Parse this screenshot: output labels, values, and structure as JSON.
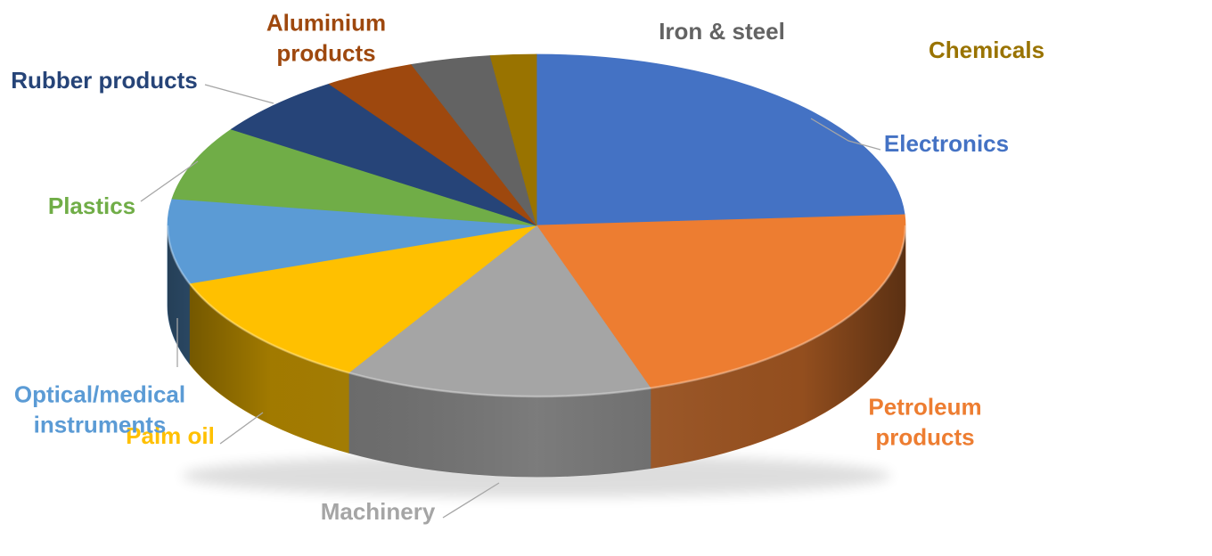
{
  "chart_data": {
    "type": "pie",
    "style": "3d-pie",
    "title": "",
    "legend": "none",
    "values_are_estimates": true,
    "start_angle_deg": 0,
    "label_style": "category names placed around pie, text colored to match slice",
    "leader_line_color": "#A6A6A6",
    "slices": [
      {
        "label": "Electronics",
        "value_pct": 24,
        "color": "#4472C4"
      },
      {
        "label": "Petroleum products",
        "value_pct": 21,
        "color": "#ED7D31"
      },
      {
        "label": "Machinery",
        "value_pct": 13.5,
        "color": "#A5A5A5"
      },
      {
        "label": "Palm oil",
        "value_pct": 11,
        "color": "#FFC000"
      },
      {
        "label": "Optical/medical instruments",
        "value_pct": 8,
        "color": "#5B9BD5"
      },
      {
        "label": "Plastics",
        "value_pct": 7,
        "color": "#70AD47"
      },
      {
        "label": "Rubber products",
        "value_pct": 6,
        "color": "#264478"
      },
      {
        "label": "Aluminium products",
        "value_pct": 4,
        "color": "#9E480E"
      },
      {
        "label": "Iron & steel",
        "value_pct": 3.5,
        "color": "#636363"
      },
      {
        "label": "Chemicals",
        "value_pct": 2,
        "color": "#997300"
      }
    ]
  }
}
